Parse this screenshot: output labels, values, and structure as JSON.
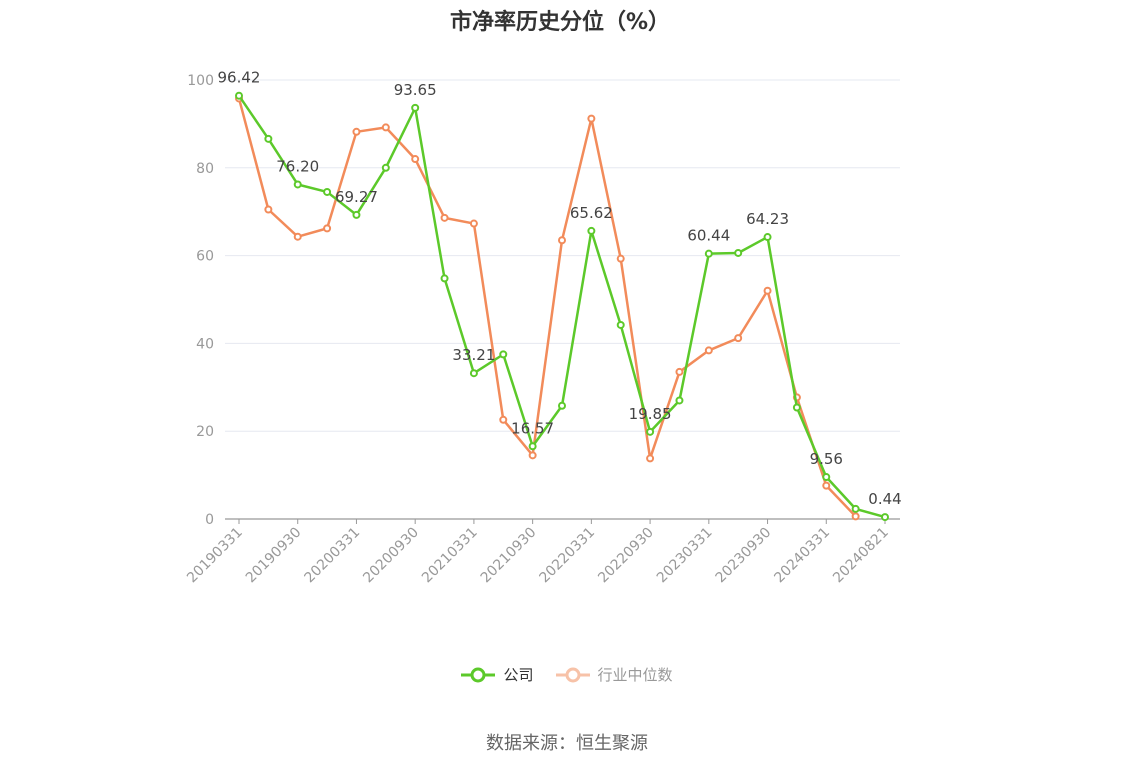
{
  "chart_data": {
    "type": "line",
    "title": "市净率历史分位（%）",
    "ylim": [
      0,
      100
    ],
    "yticks": [
      0,
      20,
      40,
      60,
      80,
      100
    ],
    "x": [
      "20190331",
      "20190630",
      "20190930",
      "20191231",
      "20200331",
      "20200630",
      "20200930",
      "20201231",
      "20210331",
      "20210630",
      "20210930",
      "20211231",
      "20220331",
      "20220630",
      "20220930",
      "20221231",
      "20230331",
      "20230630",
      "20230930",
      "20231231",
      "20240331",
      "20240630",
      "20240821"
    ],
    "xtick_labels": [
      "20190331",
      "20190930",
      "20200331",
      "20200930",
      "20210331",
      "20210930",
      "20220331",
      "20220930",
      "20230331",
      "20230930",
      "20240331",
      "20240821"
    ],
    "series": [
      {
        "name": "公司",
        "color": "#5cc92a",
        "values": [
          96.42,
          86.6,
          76.2,
          74.5,
          69.27,
          80.0,
          93.65,
          54.8,
          33.21,
          37.5,
          16.57,
          25.8,
          65.62,
          44.2,
          19.85,
          27.0,
          60.44,
          60.6,
          64.23,
          25.4,
          9.56,
          2.3,
          0.44
        ]
      },
      {
        "name": "行业中位数",
        "color": "#f28b5a",
        "values": [
          95.8,
          70.5,
          64.3,
          66.2,
          88.2,
          89.2,
          82.0,
          68.6,
          67.3,
          22.6,
          14.5,
          63.5,
          91.2,
          59.3,
          13.8,
          33.5,
          38.4,
          41.2,
          52.0,
          27.7,
          7.6,
          0.6,
          null
        ]
      }
    ],
    "data_labels": [
      {
        "index": 0,
        "text": "96.42"
      },
      {
        "index": 2,
        "text": "76.20"
      },
      {
        "index": 4,
        "text": "69.27"
      },
      {
        "index": 6,
        "text": "93.65"
      },
      {
        "index": 8,
        "text": "33.21"
      },
      {
        "index": 10,
        "text": "16.57"
      },
      {
        "index": 12,
        "text": "65.62"
      },
      {
        "index": 14,
        "text": "19.85"
      },
      {
        "index": 16,
        "text": "60.44"
      },
      {
        "index": 18,
        "text": "64.23"
      },
      {
        "index": 20,
        "text": "9.56"
      },
      {
        "index": 22,
        "text": "0.44"
      }
    ],
    "grid": true,
    "legend_position": "bottom-center"
  },
  "legend": {
    "company": "公司",
    "industry": "行业中位数"
  },
  "source": "数据来源：恒生聚源"
}
